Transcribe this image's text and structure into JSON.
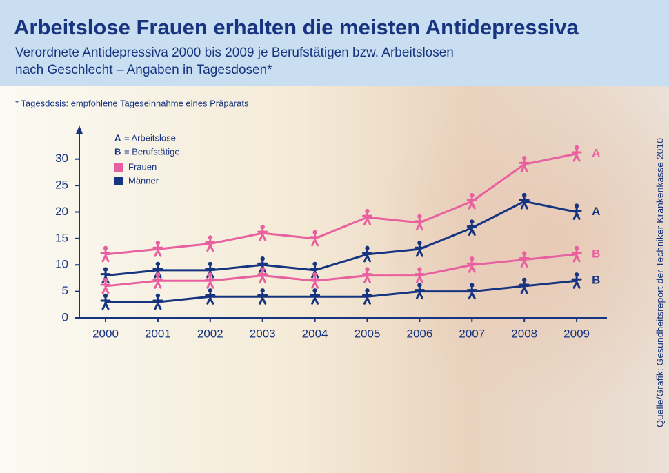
{
  "chart_data": {
    "type": "line",
    "title": "Arbeitslose Frauen erhalten die meisten Antidepressiva",
    "subtitle": [
      "Verordnete Antidepressiva 2000 bis 2009 je Berufstätigen bzw. Arbeitslosen",
      "nach Geschlecht – Angaben in Tagesdosen*"
    ],
    "footnote": "* Tagesdosis: empfohlene Tageseinnahme eines Präparats",
    "source": "Quelle/Grafik: Gesundheitsreport der Techniker Krankenkasse 2010",
    "legend": {
      "groups": [
        {
          "key": "A",
          "text": "= Arbeitslose"
        },
        {
          "key": "B",
          "text": "= Berufstätige"
        }
      ],
      "colors": [
        {
          "name": "Frauen",
          "color": "#e8609f"
        },
        {
          "name": "Männer",
          "color": "#16347f"
        }
      ]
    },
    "categories": [
      "2000",
      "2001",
      "2002",
      "2003",
      "2004",
      "2005",
      "2006",
      "2007",
      "2008",
      "2009"
    ],
    "series": [
      {
        "name": "A",
        "color": "#e8609f",
        "values": [
          12,
          13,
          14,
          16,
          15,
          19,
          18,
          22,
          29,
          31
        ]
      },
      {
        "name": "A",
        "color": "#16347f",
        "values": [
          8,
          9,
          9,
          10,
          9,
          12,
          13,
          17,
          22,
          20
        ]
      },
      {
        "name": "B",
        "color": "#e8609f",
        "values": [
          6,
          7,
          7,
          8,
          7,
          8,
          8,
          10,
          11,
          12
        ]
      },
      {
        "name": "B",
        "color": "#16347f",
        "values": [
          3,
          3,
          4,
          4,
          4,
          4,
          5,
          5,
          6,
          7
        ]
      }
    ],
    "ylim": [
      0,
      34
    ],
    "yticks": [
      0,
      5,
      10,
      15,
      20,
      25,
      30
    ],
    "axis_color": "#16347f"
  }
}
